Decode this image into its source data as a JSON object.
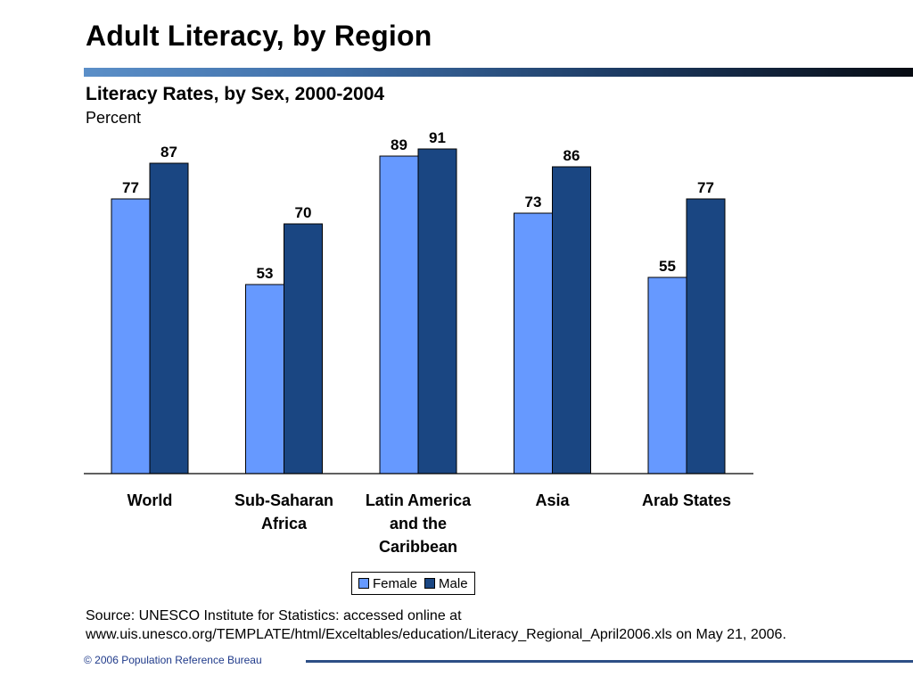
{
  "slide": {
    "title": "Adult Literacy, by Region",
    "source_line1": "Source: UNESCO Institute for Statistics: accessed online at",
    "source_line2": "www.uis.unesco.org/TEMPLATE/html/Exceltables/education/Literacy_Regional_April2006.xls on May 21, 2006.",
    "footer": "© 2006 Population Reference Bureau"
  },
  "chart_data": {
    "type": "bar",
    "title": "Literacy Rates, by Sex, 2000-2004",
    "unit_label": "Percent",
    "xlabel": "",
    "ylabel": "",
    "categories": [
      "World",
      "Sub-Saharan Africa",
      "Latin America and the Caribbean",
      "Asia",
      "Arab States"
    ],
    "category_lines": [
      [
        "World"
      ],
      [
        "Sub-Saharan",
        "Africa"
      ],
      [
        "Latin America",
        "and the",
        "Caribbean"
      ],
      [
        "Asia"
      ],
      [
        "Arab States"
      ]
    ],
    "series": [
      {
        "name": "Female",
        "color": "#6699ff",
        "values": [
          77,
          53,
          89,
          73,
          55
        ]
      },
      {
        "name": "Male",
        "color": "#1a4682",
        "values": [
          87,
          70,
          91,
          86,
          77
        ]
      }
    ],
    "ylim": [
      0,
      100
    ],
    "grid": false,
    "data_labels": true,
    "legend": "bottom-center"
  }
}
